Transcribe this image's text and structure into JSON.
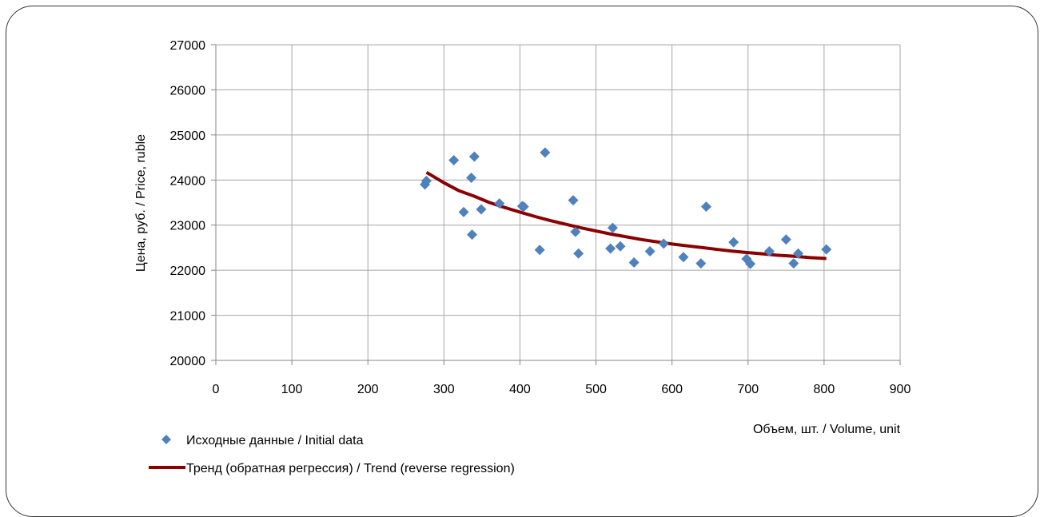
{
  "chart_data": {
    "type": "scatter",
    "title": "",
    "xlabel": "Объем, шт. / Volume,  unit",
    "ylabel": "Цена, руб. / Price, ruble",
    "xlim": [
      0,
      900
    ],
    "ylim": [
      20000,
      27000
    ],
    "x_ticks": [
      0,
      100,
      200,
      300,
      400,
      500,
      600,
      700,
      800,
      900
    ],
    "y_ticks": [
      20000,
      21000,
      22000,
      23000,
      24000,
      25000,
      26000,
      27000
    ],
    "grid": true,
    "legend_position": "bottom-left",
    "series": [
      {
        "name": "Исходные данные / Initial data",
        "kind": "scatter",
        "marker": "diamond",
        "color": "#4F81BD",
        "points": [
          [
            275,
            23900
          ],
          [
            277,
            23980
          ],
          [
            313,
            24440
          ],
          [
            326,
            23290
          ],
          [
            336,
            24050
          ],
          [
            337,
            22790
          ],
          [
            340,
            24520
          ],
          [
            349,
            23350
          ],
          [
            373,
            23480
          ],
          [
            403,
            23420
          ],
          [
            405,
            23410
          ],
          [
            426,
            22450
          ],
          [
            433,
            24610
          ],
          [
            470,
            23550
          ],
          [
            473,
            22850
          ],
          [
            477,
            22370
          ],
          [
            519,
            22480
          ],
          [
            522,
            22940
          ],
          [
            532,
            22530
          ],
          [
            550,
            22170
          ],
          [
            571,
            22420
          ],
          [
            589,
            22590
          ],
          [
            615,
            22290
          ],
          [
            638,
            22150
          ],
          [
            645,
            23410
          ],
          [
            681,
            22620
          ],
          [
            698,
            22250
          ],
          [
            703,
            22140
          ],
          [
            728,
            22420
          ],
          [
            750,
            22680
          ],
          [
            760,
            22150
          ],
          [
            766,
            22370
          ],
          [
            803,
            22460
          ]
        ]
      },
      {
        "name": "Тренд (обратная регрессия) / Trend (reverse regression)",
        "kind": "line",
        "color": "#8B0000",
        "points": [
          [
            277,
            24170
          ],
          [
            300,
            23940
          ],
          [
            320,
            23760
          ],
          [
            340,
            23640
          ],
          [
            360,
            23500
          ],
          [
            380,
            23390
          ],
          [
            400,
            23290
          ],
          [
            420,
            23190
          ],
          [
            440,
            23100
          ],
          [
            460,
            23020
          ],
          [
            480,
            22940
          ],
          [
            500,
            22870
          ],
          [
            520,
            22800
          ],
          [
            540,
            22740
          ],
          [
            560,
            22680
          ],
          [
            580,
            22630
          ],
          [
            600,
            22580
          ],
          [
            620,
            22540
          ],
          [
            640,
            22500
          ],
          [
            660,
            22460
          ],
          [
            680,
            22420
          ],
          [
            700,
            22390
          ],
          [
            720,
            22360
          ],
          [
            740,
            22330
          ],
          [
            760,
            22310
          ],
          [
            780,
            22280
          ],
          [
            803,
            22260
          ]
        ]
      }
    ]
  }
}
